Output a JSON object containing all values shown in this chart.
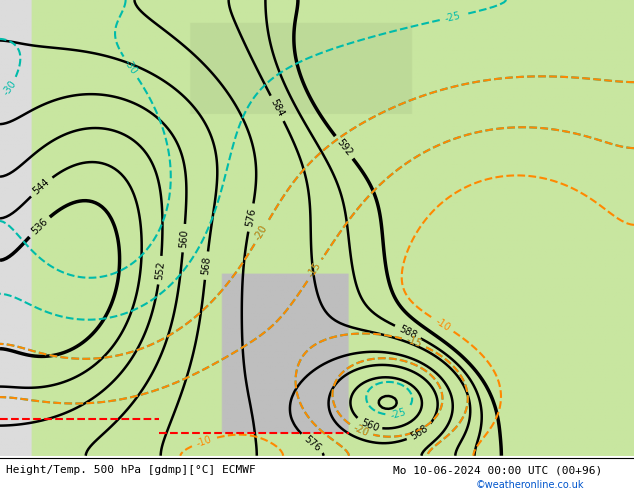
{
  "title_left": "Height/Temp. 500 hPa [gdmp][°C] ECMWF",
  "title_right": "Mo 10-06-2024 00:00 UTC (00+96)",
  "credit": "©weatheronline.co.uk",
  "bg_land_light": "#c8e6a0",
  "bg_land_gray": "#c8c8c8",
  "bg_sea": "#e8e8e8",
  "text_color_bottom_left": "#000000",
  "text_color_bottom_right": "#000000",
  "credit_color": "#0055cc",
  "contour_z500_color": "#000000",
  "contour_temp_warm_color": "#ff8800",
  "contour_temp_cold_color": "#00bbaa",
  "contour_z850_color": "#ff0000",
  "fig_width": 6.34,
  "fig_height": 4.9,
  "dpi": 100
}
